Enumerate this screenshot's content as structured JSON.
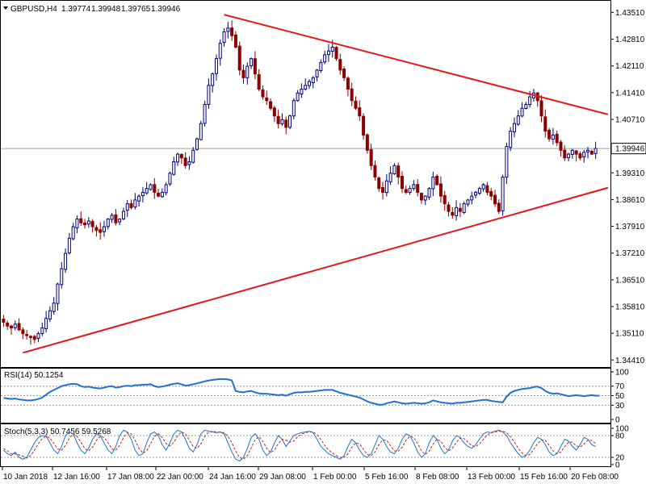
{
  "header": {
    "symbol": "GBPUSD,H4",
    "open": "1.39774",
    "high": "1.39948",
    "low": "1.39765",
    "close": "1.39946"
  },
  "colors": {
    "bull_candle": "#000080",
    "bear_candle": "#8B0000",
    "trendline": "#e8141a",
    "indicator_line": "#1e73d2",
    "stoch_signal": "#cc1f1f",
    "price_line": "#a0a0a0",
    "grid_dash": "#9a9a9a"
  },
  "chart_data": [
    {
      "type": "candlestick",
      "title": "GBPUSD,H4",
      "ylim": [
        1.3429,
        1.4375
      ],
      "price_axis_ticks": [
        "1.43510",
        "1.42810",
        "1.42110",
        "1.41410",
        "1.40710",
        "1.39930",
        "1.39310",
        "1.38610",
        "1.37910",
        "1.37210",
        "1.36510",
        "1.35810",
        "1.35110",
        "1.34410"
      ],
      "current_price": "1.39946",
      "time_labels": [
        "10 Jan 2018",
        "12 Jan 16:00",
        "17 Jan 08:00",
        "22 Jan 00:00",
        "24 Jan 16:00",
        "29 Jan 08:00",
        "1 Feb 00:00",
        "5 Feb 16:00",
        "8 Feb 08:00",
        "13 Feb 00:00",
        "15 Feb 16:00",
        "20 Feb 08:00"
      ],
      "close_series": [
        1.354,
        1.353,
        1.3525,
        1.3535,
        1.352,
        1.351,
        1.3505,
        1.35,
        1.3495,
        1.351,
        1.3525,
        1.355,
        1.357,
        1.359,
        1.364,
        1.368,
        1.372,
        1.376,
        1.379,
        1.381,
        1.38,
        1.3795,
        1.3805,
        1.379,
        1.378,
        1.3775,
        1.379,
        1.381,
        1.382,
        1.38,
        1.381,
        1.383,
        1.385,
        1.384,
        1.386,
        1.387,
        1.388,
        1.389,
        1.39,
        1.388,
        1.387,
        1.388,
        1.39,
        1.393,
        1.396,
        1.398,
        1.397,
        1.395,
        1.396,
        1.399,
        1.402,
        1.406,
        1.411,
        1.416,
        1.419,
        1.423,
        1.427,
        1.43,
        1.431,
        1.429,
        1.426,
        1.42,
        1.418,
        1.421,
        1.423,
        1.419,
        1.415,
        1.413,
        1.412,
        1.41,
        1.408,
        1.406,
        1.407,
        1.405,
        1.408,
        1.412,
        1.414,
        1.415,
        1.416,
        1.417,
        1.418,
        1.42,
        1.422,
        1.424,
        1.425,
        1.426,
        1.423,
        1.42,
        1.418,
        1.415,
        1.412,
        1.41,
        1.408,
        1.403,
        1.399,
        1.395,
        1.392,
        1.389,
        1.388,
        1.391,
        1.393,
        1.395,
        1.392,
        1.389,
        1.388,
        1.389,
        1.39,
        1.388,
        1.386,
        1.387,
        1.389,
        1.392,
        1.39,
        1.387,
        1.385,
        1.383,
        1.382,
        1.384,
        1.383,
        1.385,
        1.386,
        1.387,
        1.388,
        1.389,
        1.39,
        1.388,
        1.387,
        1.385,
        1.383,
        1.392,
        1.4,
        1.404,
        1.406,
        1.408,
        1.41,
        1.411,
        1.413,
        1.414,
        1.412,
        1.408,
        1.404,
        1.402,
        1.403,
        1.401,
        1.399,
        1.397,
        1.398,
        1.399,
        1.398,
        1.397,
        1.3985,
        1.399,
        1.398,
        1.3995
      ],
      "trendlines": [
        {
          "name": "upper",
          "from": {
            "bar": 57,
            "price": 1.4345
          },
          "to": {
            "bar": 152,
            "price": 1.4095
          }
        },
        {
          "name": "lower",
          "from": {
            "bar": 5,
            "price": 1.346
          },
          "to": {
            "bar": 152,
            "price": 1.388
          }
        }
      ]
    },
    {
      "type": "line",
      "title": "RSI(14) 50.1254",
      "ylim": [
        0,
        100
      ],
      "levels": [
        30,
        50,
        70
      ],
      "tick_labels": [
        "100",
        "70",
        "50",
        "30",
        "0"
      ],
      "values": [
        45,
        44,
        43,
        44,
        42,
        41,
        40,
        40,
        41,
        43,
        46,
        52,
        58,
        62,
        66,
        70,
        72,
        74,
        75,
        74,
        70,
        68,
        69,
        67,
        66,
        65,
        67,
        69,
        70,
        67,
        68,
        70,
        71,
        70,
        72,
        72,
        73,
        73,
        74,
        70,
        68,
        69,
        71,
        73,
        75,
        76,
        74,
        71,
        72,
        74,
        76,
        78,
        80,
        82,
        83,
        84,
        85,
        85,
        84,
        82,
        60,
        58,
        57,
        59,
        60,
        57,
        55,
        54,
        54,
        53,
        52,
        51,
        52,
        50,
        53,
        56,
        57,
        57,
        58,
        58,
        59,
        60,
        61,
        62,
        62,
        62,
        59,
        56,
        54,
        52,
        50,
        48,
        46,
        42,
        38,
        35,
        33,
        31,
        31,
        34,
        36,
        38,
        36,
        34,
        33,
        34,
        35,
        34,
        33,
        34,
        36,
        40,
        38,
        36,
        35,
        34,
        33,
        35,
        35,
        36,
        37,
        38,
        39,
        40,
        41,
        41,
        39,
        38,
        37,
        36,
        48,
        56,
        60,
        62,
        64,
        65,
        66,
        68,
        69,
        66,
        60,
        56,
        54,
        55,
        53,
        51,
        49,
        50,
        51,
        50,
        49,
        50,
        51,
        50,
        50
      ]
    },
    {
      "type": "line",
      "title": "Stoch(5,3,3) 50.7456 59.5268",
      "ylim": [
        0,
        100
      ],
      "levels": [
        20,
        80
      ],
      "tick_labels": [
        "100",
        "80",
        "20",
        "0"
      ],
      "series": [
        {
          "name": "main",
          "values": [
            40,
            30,
            25,
            35,
            20,
            15,
            20,
            40,
            60,
            75,
            80,
            78,
            60,
            40,
            30,
            50,
            80,
            90,
            85,
            60,
            40,
            30,
            45,
            70,
            85,
            80,
            60,
            40,
            30,
            50,
            80,
            95,
            90,
            70,
            40,
            25,
            30,
            60,
            85,
            90,
            80,
            55,
            40,
            60,
            85,
            95,
            90,
            70,
            45,
            35,
            55,
            85,
            95,
            92,
            90,
            88,
            90,
            85,
            60,
            35,
            15,
            10,
            20,
            45,
            75,
            85,
            70,
            40,
            25,
            35,
            60,
            80,
            70,
            50,
            65,
            80,
            85,
            88,
            90,
            92,
            88,
            70,
            50,
            40,
            30,
            25,
            20,
            15,
            25,
            50,
            70,
            60,
            40,
            25,
            20,
            30,
            55,
            80,
            70,
            50,
            35,
            30,
            45,
            70,
            85,
            80,
            60,
            35,
            20,
            30,
            60,
            80,
            70,
            45,
            30,
            40,
            65,
            80,
            75,
            60,
            50,
            45,
            55,
            70,
            85,
            90,
            88,
            92,
            95,
            90,
            80,
            60,
            45,
            30,
            20,
            25,
            40,
            60,
            75,
            70,
            55,
            35,
            25,
            30,
            50,
            70,
            65,
            50,
            40,
            55,
            75,
            70,
            55,
            50
          ]
        },
        {
          "name": "signal",
          "values": [
            45,
            38,
            30,
            30,
            27,
            23,
            18,
            25,
            40,
            58,
            72,
            78,
            73,
            59,
            43,
            40,
            53,
            73,
            85,
            78,
            62,
            44,
            38,
            48,
            67,
            78,
            75,
            60,
            43,
            40,
            53,
            75,
            88,
            85,
            67,
            45,
            32,
            38,
            58,
            78,
            85,
            75,
            58,
            52,
            62,
            80,
            90,
            85,
            68,
            50,
            45,
            58,
            78,
            90,
            92,
            90,
            89,
            88,
            78,
            60,
            37,
            20,
            15,
            25,
            47,
            68,
            77,
            65,
            45,
            33,
            40,
            58,
            70,
            67,
            62,
            65,
            77,
            84,
            88,
            90,
            90,
            83,
            69,
            53,
            40,
            32,
            25,
            20,
            20,
            30,
            48,
            60,
            57,
            42,
            28,
            25,
            35,
            55,
            68,
            67,
            52,
            38,
            37,
            48,
            67,
            78,
            75,
            58,
            38,
            28,
            37,
            57,
            70,
            65,
            48,
            38,
            45,
            62,
            73,
            72,
            62,
            52,
            50,
            57,
            70,
            82,
            88,
            90,
            92,
            92,
            88,
            77,
            62,
            45,
            32,
            25,
            28,
            42,
            58,
            68,
            67,
            53,
            38,
            30,
            35,
            50,
            62,
            62,
            52,
            48,
            57,
            67,
            67,
            58
          ]
        }
      ]
    }
  ]
}
